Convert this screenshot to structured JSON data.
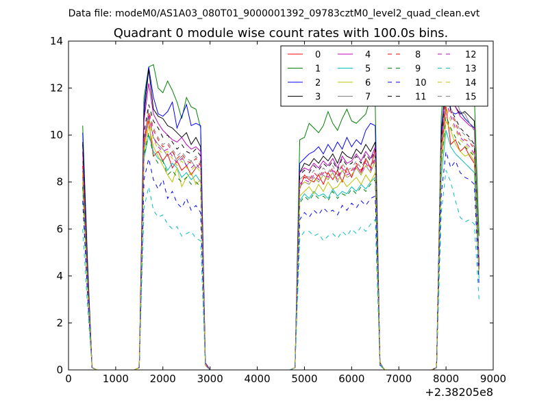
{
  "figure": {
    "suptitle": "Data file: modeM0/AS1A03_080T01_9000001392_09783cztM0_level2_quad_clean.evt",
    "offset_label": "+2.38205e8"
  },
  "chart_data": {
    "type": "line",
    "title": "Quadrant 0 module wise count rates with 100.0s bins.",
    "xlabel": "",
    "ylabel": "",
    "xlim": [
      0,
      9000
    ],
    "ylim": [
      0,
      14
    ],
    "x_offset": 238205000,
    "xticks": [
      0,
      1000,
      2000,
      3000,
      4000,
      5000,
      6000,
      7000,
      8000,
      9000
    ],
    "xtick_labels": [
      "0",
      "1000",
      "2000",
      "3000",
      "4000",
      "5000",
      "6000",
      "7000",
      "8000",
      "9000"
    ],
    "yticks": [
      0,
      2,
      4,
      6,
      8,
      10,
      12,
      14
    ],
    "ytick_labels": [
      "0",
      "2",
      "4",
      "6",
      "8",
      "10",
      "12",
      "14"
    ],
    "grid": false,
    "legend_position": "top-right",
    "legend_columns": 4,
    "x": [
      300,
      400,
      500,
      600,
      700,
      800,
      900,
      1000,
      1100,
      1200,
      1300,
      1400,
      1500,
      1600,
      1700,
      1800,
      1900,
      2000,
      2100,
      2200,
      2300,
      2400,
      2500,
      2600,
      2700,
      2800,
      2900,
      3000,
      3100,
      3200,
      3300,
      3400,
      3500,
      3600,
      3700,
      3800,
      3900,
      4000,
      4100,
      4200,
      4300,
      4400,
      4500,
      4600,
      4700,
      4800,
      4900,
      5000,
      5100,
      5200,
      5300,
      5400,
      5500,
      5600,
      5700,
      5800,
      5900,
      6000,
      6100,
      6200,
      6300,
      6400,
      6500,
      6600,
      6700,
      6800,
      6900,
      7000,
      7100,
      7200,
      7300,
      7400,
      7500,
      7600,
      7700,
      7800,
      7900,
      8000,
      8100,
      8200,
      8300,
      8400,
      8500,
      8600,
      8700
    ],
    "active_segments": [
      {
        "x": [
          300,
          400,
          500
        ]
      },
      {
        "x": [
          1500,
          1600,
          1700,
          1800,
          1900,
          2000,
          2100,
          2200,
          2300,
          2400,
          2500,
          2600,
          2700,
          2800,
          2900
        ]
      },
      {
        "x": [
          4800,
          4900,
          5000,
          5100,
          5200,
          5300,
          5400,
          5500,
          5600,
          5700,
          5800,
          5900,
          6000,
          6100,
          6200,
          6300,
          6400,
          6500,
          6600
        ]
      },
      {
        "x": [
          7800,
          7900,
          8000,
          8100,
          8200,
          8300,
          8400,
          8500,
          8600,
          8700
        ]
      }
    ],
    "series": [
      {
        "name": "0",
        "color": "#ff0000",
        "dash": "solid",
        "segments": [
          [
            8.3,
            3.8,
            0.1
          ],
          [
            0.1,
            9.8,
            10.6,
            9.1,
            9.3,
            8.9,
            9.2,
            8.6,
            8.9,
            8.5,
            8.7,
            8.3,
            8.6,
            8.8,
            0.2
          ],
          [
            0.1,
            7.7,
            8.3,
            8.1,
            8.0,
            8.3,
            7.9,
            8.4,
            8.1,
            8.5,
            8.0,
            8.6,
            8.2,
            8.7,
            8.4,
            9.0,
            8.6,
            9.4,
            0.3
          ],
          [
            0.1,
            9.2,
            11.2,
            9.6,
            9.8,
            9.3,
            9.5,
            9.1,
            8.8,
            4.4
          ]
        ]
      },
      {
        "name": "1",
        "color": "#008000",
        "dash": "solid",
        "segments": [
          [
            10.4,
            4.8,
            0.1
          ],
          [
            0.1,
            11.6,
            12.9,
            13.0,
            12.0,
            11.8,
            12.3,
            11.9,
            11.4,
            10.7,
            11.6,
            11.2,
            11.1,
            10.3,
            0.3
          ],
          [
            0.1,
            9.8,
            9.9,
            10.5,
            10.3,
            10.1,
            10.4,
            11.0,
            10.5,
            10.2,
            10.7,
            11.1,
            10.6,
            10.5,
            10.7,
            10.9,
            11.6,
            11.3,
            0.3
          ],
          [
            0.1,
            10.8,
            13.1,
            12.9,
            12.3,
            12.7,
            12.3,
            12.0,
            11.7,
            5.7
          ]
        ]
      },
      {
        "name": "2",
        "color": "#0000ff",
        "dash": "solid",
        "segments": [
          [
            10.1,
            4.6,
            0.1
          ],
          [
            0.1,
            11.2,
            12.9,
            11.6,
            10.9,
            10.8,
            11.0,
            11.4,
            10.3,
            10.8,
            11.3,
            10.4,
            10.5,
            10.4,
            0.3
          ],
          [
            0.1,
            8.8,
            9.0,
            9.2,
            9.3,
            9.5,
            9.2,
            9.6,
            9.3,
            9.7,
            9.4,
            9.9,
            9.5,
            9.8,
            9.6,
            10.2,
            10.5,
            10.4,
            0.3
          ],
          [
            0.1,
            10.2,
            12.3,
            11.0,
            10.9,
            11.0,
            10.7,
            10.5,
            10.3,
            4.6
          ]
        ]
      },
      {
        "name": "3",
        "color": "#000000",
        "dash": "solid",
        "segments": [
          [
            9.7,
            4.4,
            0.1
          ],
          [
            0.1,
            10.8,
            12.8,
            11.1,
            10.8,
            10.7,
            10.4,
            10.3,
            10.1,
            9.9,
            10.1,
            9.6,
            9.9,
            9.5,
            0.3
          ],
          [
            0.1,
            8.4,
            8.8,
            8.7,
            9.0,
            8.8,
            9.1,
            8.9,
            9.2,
            8.8,
            9.3,
            9.1,
            9.0,
            9.4,
            9.2,
            9.6,
            9.3,
            9.7,
            0.3
          ],
          [
            0.1,
            9.9,
            12.5,
            11.5,
            11.2,
            10.9,
            11.0,
            10.8,
            10.6,
            4.5
          ]
        ]
      },
      {
        "name": "4",
        "color": "#bf00bf",
        "dash": "solid",
        "segments": [
          [
            9.3,
            4.2,
            0.1
          ],
          [
            0.1,
            10.6,
            12.2,
            10.9,
            10.5,
            10.2,
            10.0,
            9.8,
            9.7,
            9.9,
            9.6,
            9.4,
            9.5,
            9.3,
            0.3
          ],
          [
            0.1,
            8.4,
            8.6,
            8.5,
            8.8,
            8.6,
            8.9,
            8.7,
            9.0,
            8.6,
            9.1,
            8.8,
            8.9,
            9.2,
            8.9,
            9.3,
            9.0,
            9.5,
            0.3
          ],
          [
            0.1,
            9.7,
            12.4,
            11.8,
            11.2,
            10.8,
            10.6,
            10.4,
            10.3,
            4.4
          ]
        ]
      },
      {
        "name": "5",
        "color": "#00bfbf",
        "dash": "solid",
        "segments": [
          [
            7.8,
            3.6,
            0.1
          ],
          [
            0.1,
            9.0,
            10.0,
            9.3,
            9.0,
            8.9,
            8.5,
            8.8,
            8.6,
            8.2,
            8.4,
            8.1,
            8.3,
            8.0,
            0.2
          ],
          [
            0.1,
            7.2,
            7.5,
            7.3,
            7.6,
            7.4,
            7.5,
            7.3,
            7.7,
            7.4,
            7.6,
            7.5,
            7.8,
            7.6,
            7.9,
            7.7,
            8.0,
            8.2,
            0.2
          ],
          [
            0.1,
            8.2,
            10.2,
            9.5,
            9.2,
            9.0,
            8.8,
            8.6,
            8.4,
            3.9
          ]
        ]
      },
      {
        "name": "6",
        "color": "#bfbf00",
        "dash": "solid",
        "segments": [
          [
            8.0,
            3.7,
            0.1
          ],
          [
            0.1,
            9.2,
            10.4,
            9.5,
            9.1,
            8.7,
            8.3,
            8.0,
            8.6,
            7.8,
            8.2,
            8.4,
            7.9,
            8.1,
            0.2
          ],
          [
            0.1,
            7.4,
            7.6,
            7.8,
            7.5,
            7.9,
            7.6,
            8.0,
            7.7,
            7.8,
            8.1,
            7.8,
            8.0,
            8.2,
            7.9,
            8.3,
            8.0,
            8.4,
            0.2
          ],
          [
            0.1,
            8.7,
            10.6,
            10.2,
            9.6,
            9.3,
            9.1,
            9.2,
            8.9,
            4.1
          ]
        ]
      },
      {
        "name": "7",
        "color": "#808080",
        "dash": "solid",
        "segments": [
          [
            8.2,
            3.8,
            0.1
          ],
          [
            0.1,
            9.4,
            10.8,
            9.9,
            9.6,
            9.4,
            9.1,
            9.3,
            8.9,
            9.1,
            8.7,
            8.9,
            8.6,
            8.8,
            0.2
          ],
          [
            0.1,
            7.8,
            8.0,
            7.9,
            8.2,
            8.0,
            8.3,
            8.1,
            8.4,
            8.0,
            8.5,
            8.2,
            8.3,
            8.6,
            8.3,
            8.7,
            8.4,
            8.9,
            0.3
          ],
          [
            0.1,
            9.6,
            11.5,
            11.8,
            11.6,
            11.0,
            10.9,
            10.5,
            10.2,
            4.7
          ]
        ]
      },
      {
        "name": "8",
        "color": "#ff0000",
        "dash": "dashed",
        "segments": [
          [
            8.7,
            3.9,
            0.1
          ],
          [
            0.1,
            9.7,
            11.0,
            10.2,
            9.8,
            9.5,
            9.6,
            9.3,
            9.0,
            9.2,
            8.9,
            8.8,
            9.0,
            8.7,
            0.2
          ],
          [
            0.1,
            8.0,
            8.2,
            8.1,
            8.4,
            8.2,
            8.5,
            8.3,
            8.6,
            8.2,
            8.7,
            8.4,
            8.5,
            8.8,
            8.5,
            8.9,
            8.6,
            9.1,
            0.3
          ],
          [
            0.1,
            9.5,
            11.6,
            11.0,
            10.5,
            10.0,
            9.8,
            9.7,
            9.4,
            4.3
          ]
        ]
      },
      {
        "name": "9",
        "color": "#008000",
        "dash": "dashed",
        "segments": [
          [
            7.8,
            3.6,
            0.1
          ],
          [
            0.1,
            9.1,
            10.1,
            9.1,
            8.8,
            8.9,
            8.3,
            8.5,
            8.2,
            8.0,
            8.2,
            7.9,
            8.0,
            7.8,
            0.2
          ],
          [
            0.1,
            7.1,
            7.4,
            7.2,
            7.5,
            7.3,
            7.4,
            7.2,
            7.6,
            7.3,
            7.5,
            7.4,
            7.7,
            7.5,
            7.8,
            7.6,
            7.9,
            8.1,
            0.2
          ],
          [
            0.1,
            8.8,
            10.8,
            10.3,
            9.9,
            9.6,
            9.5,
            9.3,
            9.1,
            4.2
          ]
        ]
      },
      {
        "name": "10",
        "color": "#0000ff",
        "dash": "dashed",
        "segments": [
          [
            7.2,
            3.3,
            0.1
          ],
          [
            0.1,
            8.1,
            9.0,
            8.1,
            7.7,
            8.1,
            7.3,
            7.6,
            7.1,
            6.9,
            7.3,
            6.8,
            7.0,
            6.7,
            0.2
          ],
          [
            0.1,
            6.4,
            6.7,
            6.5,
            6.8,
            6.6,
            6.9,
            6.7,
            6.8,
            6.6,
            7.0,
            6.8,
            7.1,
            6.9,
            7.2,
            7.0,
            7.3,
            7.4,
            0.2
          ],
          [
            0.1,
            7.5,
            9.3,
            8.6,
            8.9,
            8.4,
            8.2,
            8.1,
            7.9,
            3.6
          ]
        ]
      },
      {
        "name": "11",
        "color": "#000000",
        "dash": "dashed",
        "segments": [
          [
            9.6,
            4.3,
            0.1
          ],
          [
            0.1,
            10.1,
            11.3,
            10.6,
            10.3,
            9.9,
            10.0,
            9.7,
            9.4,
            9.6,
            9.3,
            9.2,
            9.4,
            9.1,
            0.2
          ],
          [
            0.1,
            8.3,
            8.5,
            8.4,
            8.7,
            8.5,
            8.8,
            8.6,
            8.9,
            8.5,
            9.0,
            8.7,
            8.8,
            9.1,
            8.8,
            9.2,
            8.9,
            9.4,
            0.3
          ],
          [
            0.1,
            9.8,
            12.2,
            11.1,
            10.7,
            10.3,
            10.1,
            9.9,
            9.6,
            4.4
          ]
        ]
      },
      {
        "name": "12",
        "color": "#bf00bf",
        "dash": "dashed",
        "segments": [
          [
            8.5,
            3.9,
            0.1
          ],
          [
            0.1,
            9.5,
            10.9,
            9.9,
            9.5,
            9.3,
            9.4,
            9.1,
            8.8,
            9.0,
            8.7,
            8.6,
            8.8,
            8.5,
            0.2
          ],
          [
            0.1,
            7.9,
            8.1,
            8.0,
            8.3,
            8.1,
            8.4,
            8.2,
            8.5,
            8.1,
            8.6,
            8.3,
            8.4,
            8.7,
            8.4,
            8.8,
            8.5,
            9.0,
            0.3
          ],
          [
            0.1,
            9.4,
            11.4,
            10.8,
            10.3,
            9.9,
            9.7,
            9.5,
            9.2,
            4.2
          ]
        ]
      },
      {
        "name": "13",
        "color": "#00bfbf",
        "dash": "dashed",
        "segments": [
          [
            6.0,
            2.8,
            0.1
          ],
          [
            0.1,
            6.9,
            7.8,
            6.8,
            6.5,
            6.6,
            6.2,
            6.0,
            6.1,
            5.7,
            5.8,
            5.9,
            5.6,
            5.5,
            0.2
          ],
          [
            0.1,
            5.6,
            5.9,
            5.9,
            5.7,
            5.8,
            5.5,
            5.7,
            5.8,
            5.6,
            5.9,
            5.7,
            6.0,
            5.8,
            6.1,
            5.9,
            6.2,
            6.4,
            0.2
          ],
          [
            0.1,
            6.7,
            8.5,
            8.0,
            7.2,
            6.5,
            6.3,
            6.4,
            6.2,
            3.0
          ]
        ]
      },
      {
        "name": "14",
        "color": "#bfbf00",
        "dash": "dashed",
        "segments": [
          [
            8.4,
            3.8,
            0.1
          ],
          [
            0.1,
            9.4,
            10.7,
            9.8,
            9.4,
            9.2,
            9.3,
            9.0,
            8.7,
            8.9,
            8.6,
            8.5,
            8.7,
            8.4,
            0.2
          ],
          [
            0.1,
            7.8,
            8.0,
            7.9,
            8.2,
            8.0,
            8.3,
            8.1,
            8.4,
            8.0,
            8.5,
            8.2,
            8.3,
            8.6,
            8.3,
            8.7,
            8.4,
            8.9,
            0.3
          ],
          [
            0.1,
            9.3,
            11.2,
            10.6,
            10.2,
            9.8,
            9.6,
            9.4,
            9.1,
            4.1
          ]
        ]
      },
      {
        "name": "15",
        "color": "#808080",
        "dash": "dashed",
        "segments": [
          [
            8.9,
            4.0,
            0.1
          ],
          [
            0.1,
            9.8,
            11.1,
            10.3,
            9.9,
            9.6,
            9.7,
            9.4,
            9.1,
            9.3,
            9.0,
            8.9,
            9.1,
            8.8,
            0.2
          ],
          [
            0.1,
            8.1,
            8.3,
            8.2,
            8.5,
            8.3,
            8.6,
            8.4,
            8.7,
            8.3,
            8.8,
            8.5,
            8.6,
            8.9,
            8.6,
            9.0,
            8.7,
            9.2,
            0.3
          ],
          [
            0.1,
            9.6,
            11.8,
            11.2,
            10.6,
            10.2,
            10.0,
            9.8,
            9.5,
            4.3
          ]
        ]
      }
    ]
  }
}
